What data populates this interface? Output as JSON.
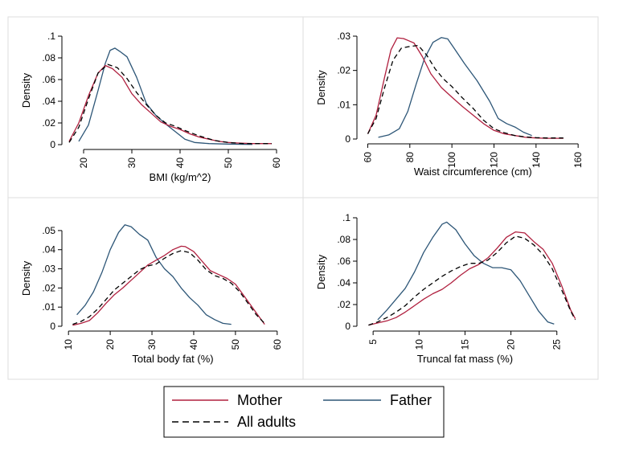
{
  "colors": {
    "mother": "#b0203f",
    "father": "#2d5677",
    "all": "#000000",
    "panel_border": "#dddddd",
    "legend_border": "#000000"
  },
  "legend": [
    {
      "key": "mother",
      "label": "Mother",
      "style": "solid"
    },
    {
      "key": "father",
      "label": "Father",
      "style": "solid"
    },
    {
      "key": "all",
      "label": "All adults",
      "style": "dashed"
    }
  ],
  "chart_data": [
    {
      "type": "line",
      "xlabel": "BMI (kg/m^2)",
      "ylabel": "Density",
      "xlim": [
        16,
        61
      ],
      "ylim": [
        0,
        0.1
      ],
      "xticks": [
        20,
        30,
        40,
        50,
        60
      ],
      "yticks": [
        0,
        0.02,
        0.04,
        0.06,
        0.08,
        0.1
      ],
      "ytick_labels": [
        "0",
        ".02",
        ".04",
        ".06",
        ".08",
        ".1"
      ],
      "series": [
        {
          "name": "Mother",
          "key": "mother",
          "x": [
            17,
            19,
            21,
            23,
            24.5,
            26,
            28,
            30,
            32,
            34,
            36,
            38,
            40,
            42,
            44,
            46,
            48,
            50,
            52,
            55,
            58,
            59
          ],
          "y": [
            0.003,
            0.02,
            0.045,
            0.066,
            0.073,
            0.07,
            0.062,
            0.047,
            0.037,
            0.029,
            0.021,
            0.017,
            0.014,
            0.01,
            0.007,
            0.005,
            0.003,
            0.002,
            0.0015,
            0.001,
            0.001,
            0.001
          ]
        },
        {
          "name": "Father",
          "key": "father",
          "x": [
            19,
            21,
            23,
            24.5,
            25.5,
            26.5,
            27.5,
            29,
            31,
            33,
            35,
            37,
            39,
            41,
            43,
            46,
            50,
            55
          ],
          "y": [
            0.003,
            0.018,
            0.05,
            0.075,
            0.087,
            0.089,
            0.086,
            0.081,
            0.062,
            0.038,
            0.027,
            0.019,
            0.012,
            0.005,
            0.002,
            0.001,
            0.0005,
            0.0002
          ]
        },
        {
          "name": "All adults",
          "key": "all",
          "x": [
            17,
            19,
            21,
            23,
            25,
            27,
            29,
            31,
            33,
            35,
            37,
            39,
            41,
            44,
            47,
            50,
            53,
            56,
            59
          ],
          "y": [
            0.002,
            0.016,
            0.042,
            0.066,
            0.074,
            0.071,
            0.061,
            0.048,
            0.037,
            0.027,
            0.02,
            0.017,
            0.013,
            0.008,
            0.004,
            0.002,
            0.001,
            0.001,
            0.001
          ]
        }
      ]
    },
    {
      "type": "line",
      "xlabel": "Waist circumference (cm)",
      "ylabel": "Density",
      "xlim": [
        56,
        163
      ],
      "ylim": [
        0,
        0.03
      ],
      "xticks": [
        60,
        80,
        100,
        120,
        140,
        160
      ],
      "yticks": [
        0,
        0.01,
        0.02,
        0.03
      ],
      "ytick_labels": [
        "0",
        ".01",
        ".02",
        ".03"
      ],
      "series": [
        {
          "name": "Mother",
          "key": "mother",
          "x": [
            60,
            64,
            68,
            71,
            74,
            77,
            82,
            86,
            90,
            95,
            100,
            105,
            110,
            115,
            120,
            125,
            130,
            135,
            140,
            145,
            150,
            153
          ],
          "y": [
            0.0015,
            0.007,
            0.018,
            0.026,
            0.0295,
            0.0293,
            0.028,
            0.024,
            0.019,
            0.015,
            0.0122,
            0.0095,
            0.007,
            0.0045,
            0.0025,
            0.0015,
            0.001,
            0.0005,
            0.0003,
            0.0002,
            0.0002,
            0.0002
          ]
        },
        {
          "name": "Father",
          "key": "father",
          "x": [
            65,
            70,
            75,
            79,
            83,
            87,
            91,
            95,
            98,
            101,
            106,
            112,
            118,
            122,
            126,
            130,
            134,
            138
          ],
          "y": [
            0.0005,
            0.0012,
            0.003,
            0.008,
            0.016,
            0.0235,
            0.0282,
            0.0296,
            0.0292,
            0.0265,
            0.022,
            0.017,
            0.011,
            0.006,
            0.0045,
            0.0035,
            0.002,
            0.001
          ]
        },
        {
          "name": "All adults",
          "key": "all",
          "x": [
            60,
            64,
            68,
            72,
            76,
            80,
            84,
            88,
            92,
            96,
            100,
            105,
            110,
            115,
            120,
            125,
            130,
            135,
            140,
            145,
            150,
            153
          ],
          "y": [
            0.0015,
            0.006,
            0.015,
            0.023,
            0.0265,
            0.027,
            0.0273,
            0.0245,
            0.0205,
            0.0175,
            0.0153,
            0.012,
            0.009,
            0.0055,
            0.003,
            0.0018,
            0.001,
            0.0006,
            0.0004,
            0.0003,
            0.0003,
            0.0003
          ]
        }
      ]
    },
    {
      "type": "line",
      "xlabel": "Total body fat (%)",
      "ylabel": "Density",
      "xlim": [
        9,
        61
      ],
      "ylim": [
        0,
        0.055
      ],
      "xticks": [
        10,
        20,
        30,
        40,
        50,
        60
      ],
      "yticks": [
        0,
        0.01,
        0.02,
        0.03,
        0.04,
        0.05
      ],
      "ytick_labels": [
        "0",
        ".01",
        ".02",
        ".03",
        ".04",
        ".05"
      ],
      "series": [
        {
          "name": "Mother",
          "key": "mother",
          "x": [
            11,
            13,
            15,
            17,
            19,
            21,
            23,
            25,
            27,
            29,
            31,
            33,
            35,
            37,
            38,
            40,
            42,
            44,
            46,
            48,
            50,
            52,
            54,
            56,
            57
          ],
          "y": [
            0.0005,
            0.0015,
            0.003,
            0.007,
            0.012,
            0.0165,
            0.02,
            0.024,
            0.028,
            0.032,
            0.0345,
            0.037,
            0.04,
            0.0418,
            0.0416,
            0.039,
            0.034,
            0.029,
            0.027,
            0.025,
            0.022,
            0.016,
            0.01,
            0.004,
            0.001
          ]
        },
        {
          "name": "Father",
          "key": "father",
          "x": [
            12,
            14,
            16,
            18,
            20,
            22,
            23.5,
            25,
            27,
            29,
            31,
            33,
            35,
            37,
            39,
            41,
            43,
            45,
            47,
            49
          ],
          "y": [
            0.006,
            0.011,
            0.018,
            0.028,
            0.04,
            0.049,
            0.053,
            0.052,
            0.048,
            0.045,
            0.036,
            0.03,
            0.026,
            0.02,
            0.015,
            0.011,
            0.006,
            0.0035,
            0.0015,
            0.001
          ]
        },
        {
          "name": "All adults",
          "key": "all",
          "x": [
            11,
            13,
            15,
            17,
            19,
            21,
            23,
            25,
            27,
            29,
            31,
            33,
            35,
            37,
            39,
            41,
            43,
            45,
            47,
            49,
            51,
            53,
            55,
            57
          ],
          "y": [
            0.001,
            0.0025,
            0.005,
            0.009,
            0.014,
            0.019,
            0.0225,
            0.026,
            0.0295,
            0.0315,
            0.0325,
            0.0355,
            0.038,
            0.0395,
            0.0385,
            0.0345,
            0.0295,
            0.0265,
            0.025,
            0.0225,
            0.018,
            0.012,
            0.006,
            0.0015
          ]
        }
      ]
    },
    {
      "type": "line",
      "xlabel": "Truncal fat mass (%)",
      "ylabel": "Density",
      "xlim": [
        3.5,
        28
      ],
      "ylim": [
        0,
        0.1
      ],
      "xticks": [
        5,
        10,
        15,
        20,
        25
      ],
      "yticks": [
        0,
        0.02,
        0.04,
        0.06,
        0.08,
        0.1
      ],
      "ytick_labels": [
        "0",
        ".02",
        ".04",
        ".06",
        ".08",
        ".1"
      ],
      "series": [
        {
          "name": "Mother",
          "key": "mother",
          "x": [
            4.5,
            5.5,
            6.5,
            7.5,
            8.5,
            9.5,
            10.5,
            11.5,
            12.5,
            13.5,
            14.5,
            15.5,
            16.5,
            17.5,
            18.5,
            19.5,
            20.5,
            21.5,
            22.5,
            23.5,
            24.5,
            25.5,
            26.5,
            27
          ],
          "y": [
            0.001,
            0.003,
            0.005,
            0.008,
            0.013,
            0.019,
            0.025,
            0.03,
            0.034,
            0.04,
            0.047,
            0.053,
            0.057,
            0.063,
            0.072,
            0.082,
            0.087,
            0.086,
            0.078,
            0.071,
            0.058,
            0.038,
            0.015,
            0.007
          ]
        },
        {
          "name": "Father",
          "key": "father",
          "x": [
            5.5,
            6.5,
            7.5,
            8.5,
            9.5,
            10.5,
            11.5,
            12.5,
            13,
            14,
            15,
            16,
            17,
            18,
            19,
            20,
            21,
            22,
            23,
            24,
            24.7
          ],
          "y": [
            0.006,
            0.015,
            0.025,
            0.035,
            0.05,
            0.068,
            0.082,
            0.094,
            0.096,
            0.089,
            0.076,
            0.065,
            0.058,
            0.054,
            0.054,
            0.052,
            0.042,
            0.028,
            0.014,
            0.004,
            0.002
          ]
        },
        {
          "name": "All adults",
          "key": "all",
          "x": [
            4.5,
            5.5,
            6.5,
            7.5,
            8.5,
            9.5,
            10.5,
            11.5,
            12.5,
            13.5,
            14.5,
            15.5,
            16.5,
            17.5,
            18.5,
            19.5,
            20.5,
            21.5,
            22.5,
            23.5,
            24.5,
            25.5,
            26.5,
            27
          ],
          "y": [
            0.001,
            0.004,
            0.008,
            0.013,
            0.019,
            0.027,
            0.034,
            0.04,
            0.046,
            0.051,
            0.055,
            0.058,
            0.058,
            0.061,
            0.068,
            0.077,
            0.083,
            0.081,
            0.075,
            0.066,
            0.053,
            0.034,
            0.014,
            0.006
          ]
        }
      ]
    }
  ]
}
